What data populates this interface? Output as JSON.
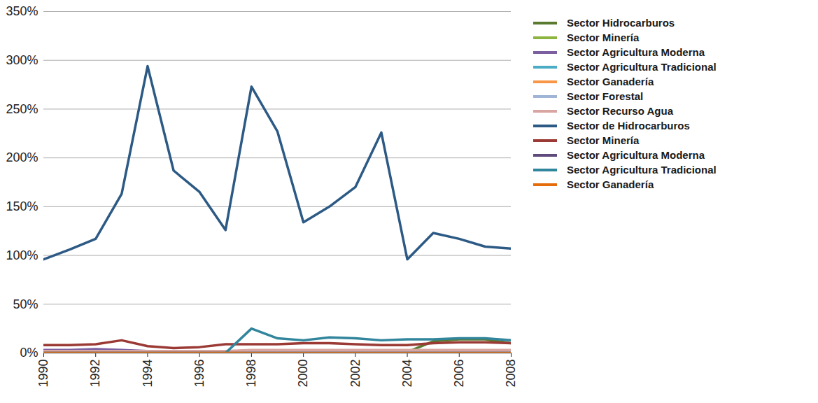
{
  "chart_data": {
    "type": "line",
    "x": [
      1990,
      1991,
      1992,
      1993,
      1994,
      1995,
      1996,
      1997,
      1998,
      1999,
      2000,
      2001,
      2002,
      2003,
      2004,
      2005,
      2006,
      2007,
      2008
    ],
    "xlim": [
      1990,
      2008
    ],
    "xticks": [
      1990,
      1992,
      1994,
      1996,
      1998,
      2000,
      2002,
      2004,
      2006,
      2008
    ],
    "ylim": [
      0,
      350
    ],
    "yticks": [
      {
        "value": 0,
        "label": "0%"
      },
      {
        "value": 50,
        "label": "50%"
      },
      {
        "value": 100,
        "label": "100%"
      },
      {
        "value": 150,
        "label": "150%"
      },
      {
        "value": 200,
        "label": "200%"
      },
      {
        "value": 250,
        "label": "250%"
      },
      {
        "value": 300,
        "label": "300%"
      },
      {
        "value": 350,
        "label": "350%"
      }
    ],
    "grid": true,
    "legend": "right",
    "series": [
      {
        "name": "Sector Hidrocarburos",
        "color": "#5a7a30",
        "values": [
          0,
          0,
          0,
          0,
          0,
          0,
          0,
          0,
          0,
          0,
          0,
          0,
          0,
          0,
          1,
          12,
          14,
          14,
          10
        ]
      },
      {
        "name": "Sector Minería",
        "color": "#8db43c",
        "values": [
          1,
          1,
          1,
          1,
          1,
          1,
          1,
          1,
          1,
          1,
          1,
          1,
          1,
          1,
          1,
          1,
          1,
          1,
          1
        ]
      },
      {
        "name": "Sector Agricultura Moderna",
        "color": "#7b5fa0",
        "values": [
          3,
          3,
          4,
          3,
          2,
          2,
          2,
          1,
          1,
          1,
          1,
          1,
          1,
          1,
          1,
          1,
          1,
          1,
          1
        ]
      },
      {
        "name": "Sector Agricultura Tradicional",
        "color": "#4bacc6",
        "values": [
          0,
          0,
          0,
          0,
          0,
          0,
          0,
          0,
          0,
          0,
          0,
          0,
          0,
          0,
          0,
          0,
          0,
          0,
          0
        ]
      },
      {
        "name": "Sector Ganadería",
        "color": "#f79646",
        "values": [
          0,
          0,
          0,
          0,
          0,
          0,
          0,
          0,
          0,
          0,
          0,
          0,
          0,
          0,
          0,
          0,
          0,
          0,
          0
        ]
      },
      {
        "name": "Sector Forestal",
        "color": "#a0b4d6",
        "values": [
          1,
          1,
          1,
          1,
          1,
          1,
          1,
          1,
          1,
          1,
          1,
          1,
          1,
          1,
          1,
          1,
          1,
          1,
          1
        ]
      },
      {
        "name": "Sector Recurso Agua",
        "color": "#d9a5a0",
        "values": [
          2,
          2,
          2,
          2,
          2,
          2,
          2,
          2,
          3,
          3,
          3,
          3,
          3,
          3,
          3,
          3,
          3,
          3,
          3
        ]
      },
      {
        "name": "Sector de Hidrocarburos",
        "color": "#2c5a85",
        "values": [
          96,
          106,
          117,
          163,
          294,
          187,
          165,
          126,
          273,
          227,
          134,
          150,
          170,
          226,
          96,
          123,
          117,
          109,
          107
        ]
      },
      {
        "name": "Sector Minería",
        "color": "#9b3a35",
        "values": [
          8,
          8,
          9,
          13,
          7,
          5,
          6,
          9,
          9,
          9,
          10,
          10,
          9,
          8,
          8,
          10,
          11,
          11,
          10
        ]
      },
      {
        "name": "Sector Agricultura Moderna",
        "color": "#604a7b",
        "values": [
          0,
          0,
          0,
          0,
          0,
          0,
          0,
          0,
          0,
          0,
          0,
          0,
          0,
          0,
          0,
          0,
          0,
          0,
          0
        ]
      },
      {
        "name": "Sector Agricultura Tradicional",
        "color": "#31859c",
        "values": [
          0,
          0,
          0,
          0,
          0,
          0,
          0,
          0,
          25,
          15,
          13,
          16,
          15,
          13,
          14,
          14,
          15,
          15,
          13
        ]
      },
      {
        "name": "Sector Ganadería",
        "color": "#e46c0a",
        "values": [
          0,
          0,
          0,
          0,
          0,
          0,
          0,
          0,
          0,
          0,
          0,
          0,
          0,
          0,
          0,
          0,
          0,
          0,
          0
        ]
      }
    ]
  }
}
